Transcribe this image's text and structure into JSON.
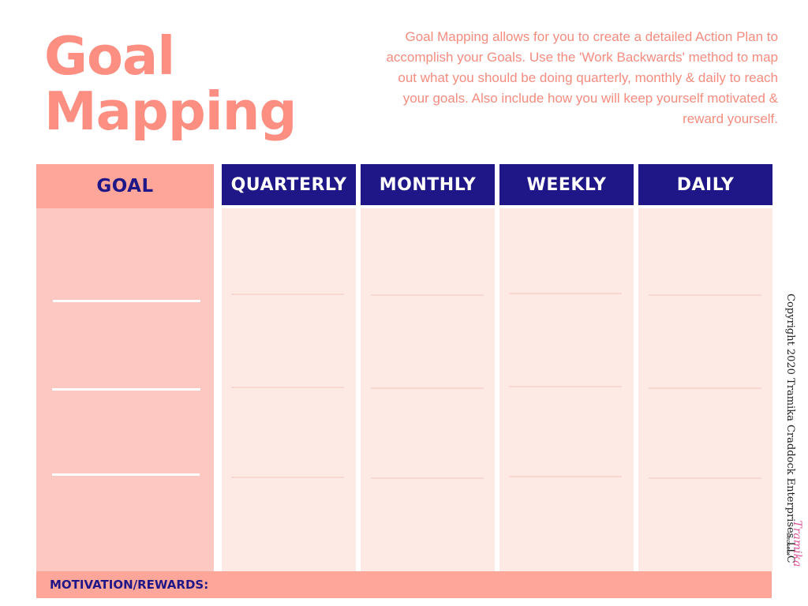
{
  "title": {
    "line1": "Goal",
    "line2": "Mapping"
  },
  "intro": "Goal Mapping allows for you to create a detailed Action Plan to accomplish your Goals. Use the 'Work Backwards' method to map out what you should be doing quarterly, monthly & daily to reach your goals. Also include how you will keep yourself motivated & reward yourself.",
  "columns": [
    {
      "label": "GOAL"
    },
    {
      "label": "QUARTERLY"
    },
    {
      "label": "MONTHLY"
    },
    {
      "label": "WEEKLY"
    },
    {
      "label": "DAILY"
    }
  ],
  "footer": {
    "label": "MOTIVATION/REWARDS:"
  },
  "copyright": "Copyright 2020 Tramika Craddock Enterprises LLC",
  "logo": {
    "text": "Tramika",
    "subtext": "CRADDOCK"
  },
  "colors": {
    "coral": "#fd8f82",
    "coral_header": "#fda699",
    "goal_body": "#fdc7c2",
    "navy": "#1f1787",
    "blush": "#fdeae5"
  }
}
